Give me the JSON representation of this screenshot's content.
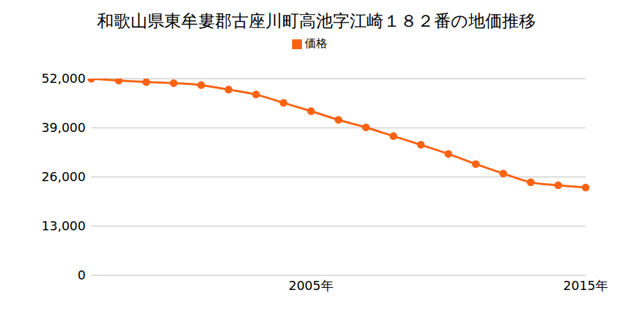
{
  "chart_data": {
    "type": "line",
    "title": "和歌山県東牟婁郡古座川町高池字江崎１８２番の地価推移",
    "categories": [
      null,
      null,
      null,
      null,
      null,
      null,
      null,
      null,
      "2005年",
      null,
      null,
      null,
      null,
      null,
      null,
      null,
      null,
      null,
      "2015年"
    ],
    "series": [
      {
        "name": "価格",
        "color": "#f96312",
        "marker": "circle",
        "values": [
          52000,
          51500,
          51100,
          50800,
          50300,
          49100,
          47800,
          45600,
          43400,
          41100,
          39100,
          36800,
          34500,
          32100,
          29400,
          26900,
          24600,
          23800,
          23200
        ]
      }
    ],
    "ylim": [
      0,
      52000
    ],
    "yticks": [
      0,
      {
        "value": 13000,
        "label": "13,000"
      },
      {
        "value": 26000,
        "label": "26,000"
      },
      {
        "value": 39000,
        "label": "39,000"
      },
      {
        "value": 52000,
        "label": "52,000"
      }
    ],
    "grid": true,
    "legend": "top"
  }
}
